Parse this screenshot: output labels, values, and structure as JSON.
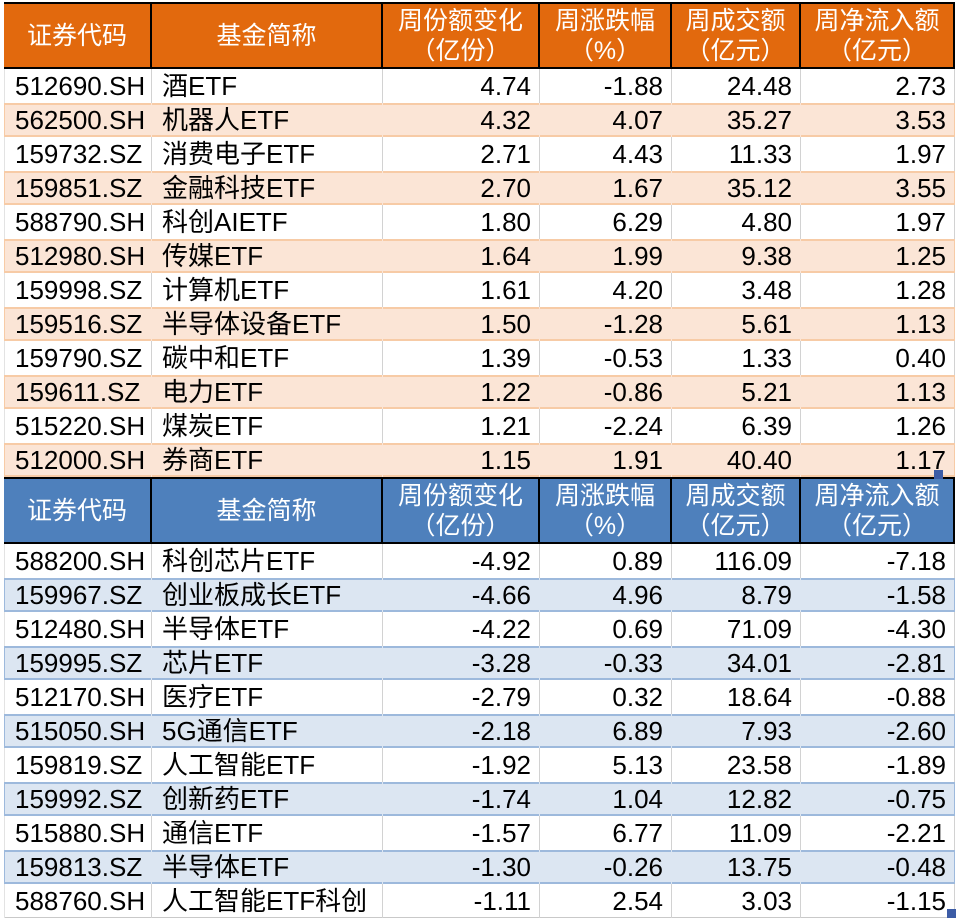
{
  "colors": {
    "fill_handle": "#3C5CA6",
    "grid_line": "#D2D2D2",
    "header_divider": "#000000"
  },
  "chart_data": [
    {
      "type": "table",
      "theme": {
        "header_bg": "#E2690D",
        "header_text": "#FFFFFF",
        "band_bg": "#FBE5D6",
        "band_border": "#F7CBA6"
      },
      "columns": [
        {
          "label": "证券代码",
          "unit": ""
        },
        {
          "label": "基金简称",
          "unit": ""
        },
        {
          "label": "周份额变化",
          "unit": "（亿份）"
        },
        {
          "label": "周涨跌幅",
          "unit": "（%）"
        },
        {
          "label": "周成交额",
          "unit": "（亿元）"
        },
        {
          "label": "周净流入额",
          "unit": "（亿元）"
        }
      ],
      "rows": [
        [
          "512690.SH",
          "酒ETF",
          "4.74",
          "-1.88",
          "24.48",
          "2.73"
        ],
        [
          "562500.SH",
          "机器人ETF",
          "4.32",
          "4.07",
          "35.27",
          "3.53"
        ],
        [
          "159732.SZ",
          "消费电子ETF",
          "2.71",
          "4.43",
          "11.33",
          "1.97"
        ],
        [
          "159851.SZ",
          "金融科技ETF",
          "2.70",
          "1.67",
          "35.12",
          "3.55"
        ],
        [
          "588790.SH",
          "科创AIETF",
          "1.80",
          "6.29",
          "4.80",
          "1.97"
        ],
        [
          "512980.SH",
          "传媒ETF",
          "1.64",
          "1.99",
          "9.38",
          "1.25"
        ],
        [
          "159998.SZ",
          "计算机ETF",
          "1.61",
          "4.20",
          "3.48",
          "1.28"
        ],
        [
          "159516.SZ",
          "半导体设备ETF",
          "1.50",
          "-1.28",
          "5.61",
          "1.13"
        ],
        [
          "159790.SZ",
          "碳中和ETF",
          "1.39",
          "-0.53",
          "1.33",
          "0.40"
        ],
        [
          "159611.SZ",
          "电力ETF",
          "1.22",
          "-0.86",
          "5.21",
          "1.13"
        ],
        [
          "515220.SH",
          "煤炭ETF",
          "1.21",
          "-2.24",
          "6.39",
          "1.26"
        ],
        [
          "512000.SH",
          "券商ETF",
          "1.15",
          "1.91",
          "40.40",
          "1.17"
        ]
      ]
    },
    {
      "type": "table",
      "theme": {
        "header_bg": "#4E80BC",
        "header_text": "#FFFFFF",
        "band_bg": "#DCE6F2",
        "band_border": "#9DB9DC"
      },
      "columns": [
        {
          "label": "证券代码",
          "unit": ""
        },
        {
          "label": "基金简称",
          "unit": ""
        },
        {
          "label": "周份额变化",
          "unit": "（亿份）"
        },
        {
          "label": "周涨跌幅",
          "unit": "（%）"
        },
        {
          "label": "周成交额",
          "unit": "（亿元）"
        },
        {
          "label": "周净流入额",
          "unit": "（亿元）"
        }
      ],
      "rows": [
        [
          "588200.SH",
          "科创芯片ETF",
          "-4.92",
          "0.89",
          "116.09",
          "-7.18"
        ],
        [
          "159967.SZ",
          "创业板成长ETF",
          "-4.66",
          "4.96",
          "8.79",
          "-1.58"
        ],
        [
          "512480.SH",
          "半导体ETF",
          "-4.22",
          "0.69",
          "71.09",
          "-4.30"
        ],
        [
          "159995.SZ",
          "芯片ETF",
          "-3.28",
          "-0.33",
          "34.01",
          "-2.81"
        ],
        [
          "512170.SH",
          "医疗ETF",
          "-2.79",
          "0.32",
          "18.64",
          "-0.88"
        ],
        [
          "515050.SH",
          "5G通信ETF",
          "-2.18",
          "6.89",
          "7.93",
          "-2.60"
        ],
        [
          "159819.SZ",
          "人工智能ETF",
          "-1.92",
          "5.13",
          "23.58",
          "-1.89"
        ],
        [
          "159992.SZ",
          "创新药ETF",
          "-1.74",
          "1.04",
          "12.82",
          "-0.75"
        ],
        [
          "515880.SH",
          "通信ETF",
          "-1.57",
          "6.77",
          "11.09",
          "-2.21"
        ],
        [
          "159813.SZ",
          "半导体ETF",
          "-1.30",
          "-0.26",
          "13.75",
          "-0.48"
        ],
        [
          "588760.SH",
          "人工智能ETF科创",
          "-1.11",
          "2.54",
          "3.03",
          "-1.15"
        ]
      ]
    }
  ]
}
